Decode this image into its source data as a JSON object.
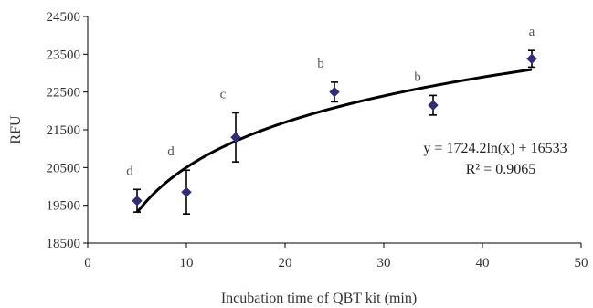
{
  "chart_data": {
    "type": "scatter",
    "xlabel": "Incubation time of QBT kit (min)",
    "ylabel": "RFU",
    "xlim": [
      0,
      50
    ],
    "ylim": [
      18500,
      24500
    ],
    "x_ticks": [
      0,
      10,
      20,
      30,
      40,
      50
    ],
    "y_ticks": [
      18500,
      19500,
      20500,
      21500,
      22500,
      23500,
      24500
    ],
    "grid": false,
    "legend": "none",
    "marker_color": "#2e2e7a",
    "series": [
      {
        "x": [
          5,
          10,
          15,
          25,
          35,
          45
        ],
        "y": [
          19620,
          19850,
          21300,
          22500,
          22150,
          23380
        ],
        "error": [
          300,
          580,
          650,
          260,
          260,
          220
        ],
        "labels": [
          "d",
          "d",
          "c",
          "b",
          "b",
          "a"
        ]
      }
    ],
    "trendline": {
      "type": "logarithmic",
      "a": 1724.2,
      "b": 16533,
      "x_range": [
        5,
        45
      ],
      "equation": "y = 1724.2ln(x) + 16533",
      "r_squared": "R² = 0.9065"
    }
  }
}
